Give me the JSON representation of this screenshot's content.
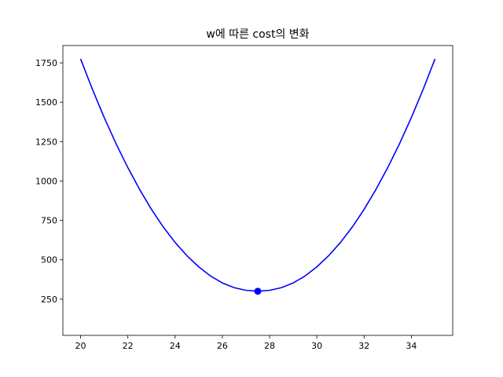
{
  "chart_data": {
    "type": "line",
    "title": "w에 따른 cost의 변화",
    "xlabel": "",
    "ylabel": "",
    "xlim": [
      19.25,
      35.75
    ],
    "ylim": [
      20,
      1860
    ],
    "x_ticks": [
      20,
      22,
      24,
      26,
      28,
      30,
      32,
      34
    ],
    "y_ticks": [
      250,
      500,
      750,
      1000,
      1250,
      1500,
      1750
    ],
    "grid": false,
    "series": [
      {
        "color": "#0000ff",
        "x": [
          20,
          20.5,
          21,
          21.5,
          22,
          22.5,
          23,
          23.5,
          24,
          24.5,
          25,
          25.5,
          26,
          26.5,
          27,
          27.5,
          28,
          28.5,
          29,
          29.5,
          30,
          30.5,
          31,
          31.5,
          32,
          32.5,
          33,
          33.5,
          34,
          34.5,
          35
        ],
        "values": [
          1775,
          1582,
          1403,
          1237,
          1085,
          946,
          820,
          708,
          610,
          526,
          455,
          397,
          353,
          323,
          306,
          300,
          306,
          323,
          353,
          397,
          455,
          526,
          610,
          708,
          820,
          946,
          1085,
          1237,
          1403,
          1582,
          1775
        ]
      }
    ],
    "marker": {
      "x": 27.5,
      "y": 300,
      "color": "#0000ff"
    }
  }
}
